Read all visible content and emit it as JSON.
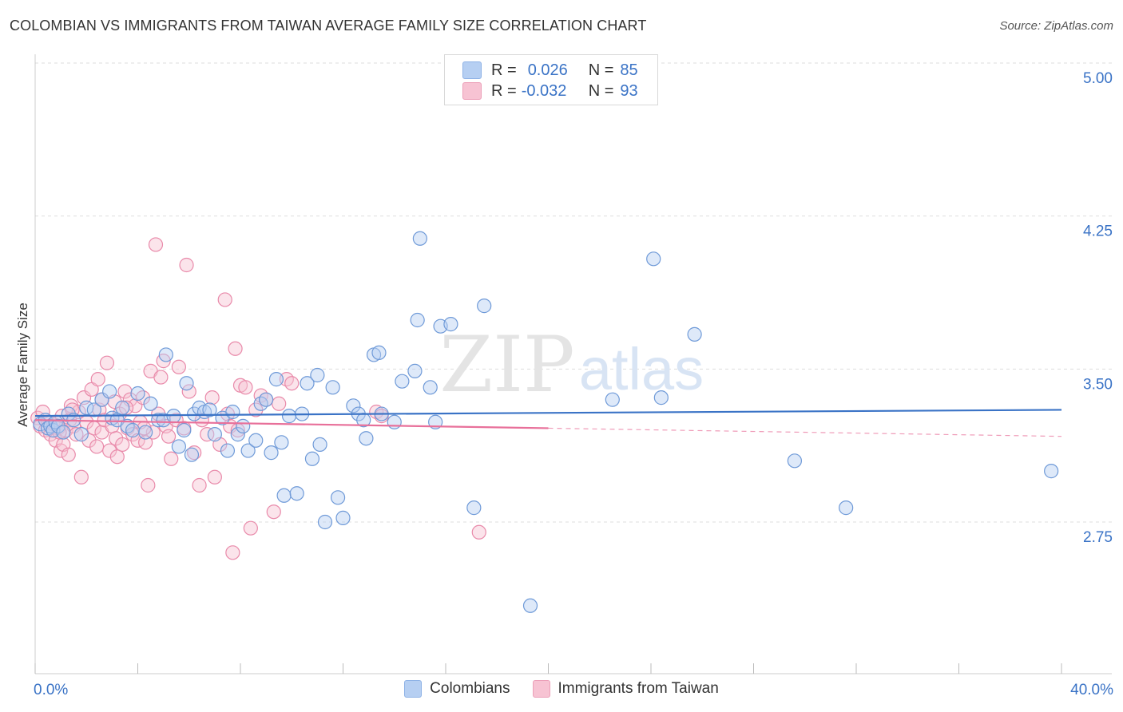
{
  "title": "COLOMBIAN VS IMMIGRANTS FROM TAIWAN AVERAGE FAMILY SIZE CORRELATION CHART",
  "source": "Source: ZipAtlas.com",
  "watermark": {
    "zip": "ZIP",
    "atlas": "atlas"
  },
  "legend": {
    "series1": {
      "r_label": "R =",
      "r_value": "0.026",
      "n_label": "N =",
      "n_value": "85"
    },
    "series2": {
      "r_label": "R =",
      "r_value": "-0.032",
      "n_label": "N =",
      "n_value": "93"
    }
  },
  "bottom_legend": {
    "series1": "Colombians",
    "series2": "Immigrants from Taiwan"
  },
  "colors": {
    "blue": "#3a73c6",
    "blue_fill": "#b6cff2",
    "pink": "#e8709a",
    "pink_fill": "#f7c3d3"
  },
  "chart_data": {
    "type": "scatter",
    "title": "COLOMBIAN VS IMMIGRANTS FROM TAIWAN AVERAGE FAMILY SIZE CORRELATION CHART",
    "xlabel": "",
    "ylabel": "Average Family Size",
    "xlim": [
      0,
      40
    ],
    "ylim": [
      2.0,
      5.1
    ],
    "x_tick_labels": [
      "0.0%",
      "40.0%"
    ],
    "y_ticks": [
      2.75,
      3.5,
      4.25,
      5.0
    ],
    "y_tick_labels": [
      "2.75",
      "3.50",
      "4.25",
      "5.00"
    ],
    "grid": true,
    "series": [
      {
        "name": "Colombians",
        "r": 0.026,
        "n": 85,
        "trend": {
          "x": [
            0,
            40
          ],
          "y": [
            3.27,
            3.3
          ]
        },
        "points": [
          [
            0.2,
            3.23
          ],
          [
            0.4,
            3.25
          ],
          [
            0.5,
            3.21
          ],
          [
            0.6,
            3.22
          ],
          [
            0.7,
            3.2
          ],
          [
            0.8,
            3.24
          ],
          [
            0.9,
            3.22
          ],
          [
            1.1,
            3.19
          ],
          [
            1.3,
            3.28
          ],
          [
            1.5,
            3.25
          ],
          [
            1.8,
            3.18
          ],
          [
            2.0,
            3.31
          ],
          [
            2.3,
            3.3
          ],
          [
            2.6,
            3.35
          ],
          [
            2.9,
            3.39
          ],
          [
            3.0,
            3.26
          ],
          [
            3.2,
            3.25
          ],
          [
            3.4,
            3.31
          ],
          [
            3.6,
            3.22
          ],
          [
            3.8,
            3.2
          ],
          [
            4.0,
            3.38
          ],
          [
            4.3,
            3.19
          ],
          [
            4.5,
            3.33
          ],
          [
            4.8,
            3.25
          ],
          [
            5.0,
            3.25
          ],
          [
            5.1,
            3.57
          ],
          [
            5.4,
            3.27
          ],
          [
            5.6,
            3.12
          ],
          [
            5.8,
            3.2
          ],
          [
            5.9,
            3.43
          ],
          [
            6.1,
            3.08
          ],
          [
            6.2,
            3.28
          ],
          [
            6.4,
            3.31
          ],
          [
            6.6,
            3.29
          ],
          [
            6.8,
            3.3
          ],
          [
            7.0,
            3.18
          ],
          [
            7.3,
            3.26
          ],
          [
            7.5,
            3.1
          ],
          [
            7.7,
            3.29
          ],
          [
            7.9,
            3.18
          ],
          [
            8.1,
            3.22
          ],
          [
            8.3,
            3.1
          ],
          [
            8.6,
            3.15
          ],
          [
            8.8,
            3.33
          ],
          [
            9.0,
            3.35
          ],
          [
            9.2,
            3.09
          ],
          [
            9.4,
            3.45
          ],
          [
            9.6,
            3.14
          ],
          [
            9.7,
            2.88
          ],
          [
            9.9,
            3.27
          ],
          [
            10.2,
            2.89
          ],
          [
            10.4,
            3.28
          ],
          [
            10.6,
            3.43
          ],
          [
            10.8,
            3.06
          ],
          [
            11.0,
            3.47
          ],
          [
            11.1,
            3.13
          ],
          [
            11.3,
            2.75
          ],
          [
            11.6,
            3.41
          ],
          [
            11.8,
            2.87
          ],
          [
            12.0,
            2.77
          ],
          [
            12.4,
            3.32
          ],
          [
            12.6,
            3.28
          ],
          [
            12.8,
            3.25
          ],
          [
            12.9,
            3.16
          ],
          [
            13.2,
            3.57
          ],
          [
            13.4,
            3.58
          ],
          [
            13.5,
            3.28
          ],
          [
            14.0,
            3.24
          ],
          [
            14.3,
            3.44
          ],
          [
            14.8,
            3.49
          ],
          [
            14.9,
            3.74
          ],
          [
            15.0,
            4.14
          ],
          [
            15.4,
            3.41
          ],
          [
            15.6,
            3.24
          ],
          [
            15.8,
            3.71
          ],
          [
            16.2,
            3.72
          ],
          [
            17.1,
            2.82
          ],
          [
            17.5,
            3.81
          ],
          [
            22.5,
            3.35
          ],
          [
            24.1,
            4.04
          ],
          [
            24.4,
            3.36
          ],
          [
            25.7,
            3.67
          ],
          [
            29.6,
            3.05
          ],
          [
            31.6,
            2.82
          ],
          [
            39.6,
            3.0
          ],
          [
            19.3,
            2.34
          ]
        ]
      },
      {
        "name": "Immigrants from Taiwan",
        "r": -0.032,
        "n": 93,
        "trend": {
          "x": [
            0,
            20
          ],
          "y": [
            3.25,
            3.21
          ]
        },
        "trend_dashed": {
          "x": [
            20,
            40
          ],
          "y": [
            3.21,
            3.17
          ]
        },
        "points": [
          [
            0.1,
            3.26
          ],
          [
            0.2,
            3.22
          ],
          [
            0.3,
            3.29
          ],
          [
            0.4,
            3.2
          ],
          [
            0.5,
            3.24
          ],
          [
            0.6,
            3.18
          ],
          [
            0.7,
            3.23
          ],
          [
            0.8,
            3.15
          ],
          [
            0.9,
            3.21
          ],
          [
            1.0,
            3.1
          ],
          [
            1.05,
            3.27
          ],
          [
            1.1,
            3.13
          ],
          [
            1.2,
            3.2
          ],
          [
            1.3,
            3.08
          ],
          [
            1.35,
            3.25
          ],
          [
            1.4,
            3.32
          ],
          [
            1.5,
            3.22
          ],
          [
            1.6,
            3.18
          ],
          [
            1.7,
            3.29
          ],
          [
            1.8,
            2.97
          ],
          [
            1.9,
            3.36
          ],
          [
            2.0,
            3.24
          ],
          [
            2.1,
            3.15
          ],
          [
            2.2,
            3.4
          ],
          [
            2.3,
            3.21
          ],
          [
            2.4,
            3.12
          ],
          [
            2.5,
            3.3
          ],
          [
            2.6,
            3.19
          ],
          [
            2.7,
            3.25
          ],
          [
            2.8,
            3.53
          ],
          [
            2.9,
            3.1
          ],
          [
            3.0,
            3.22
          ],
          [
            3.1,
            3.34
          ],
          [
            3.15,
            3.16
          ],
          [
            3.2,
            3.07
          ],
          [
            3.3,
            3.28
          ],
          [
            3.4,
            3.13
          ],
          [
            3.5,
            3.39
          ],
          [
            3.6,
            3.21
          ],
          [
            3.7,
            3.35
          ],
          [
            3.8,
            3.18
          ],
          [
            3.9,
            3.32
          ],
          [
            4.0,
            3.15
          ],
          [
            4.1,
            3.24
          ],
          [
            4.2,
            3.36
          ],
          [
            4.3,
            3.14
          ],
          [
            4.4,
            2.93
          ],
          [
            4.5,
            3.49
          ],
          [
            4.6,
            3.19
          ],
          [
            4.7,
            4.11
          ],
          [
            4.8,
            3.28
          ],
          [
            4.9,
            3.46
          ],
          [
            5.0,
            3.54
          ],
          [
            5.1,
            3.22
          ],
          [
            5.2,
            3.17
          ],
          [
            5.3,
            3.06
          ],
          [
            5.5,
            3.25
          ],
          [
            5.6,
            3.51
          ],
          [
            5.8,
            3.21
          ],
          [
            5.9,
            4.01
          ],
          [
            6.0,
            3.39
          ],
          [
            6.2,
            3.09
          ],
          [
            6.4,
            2.93
          ],
          [
            6.5,
            3.25
          ],
          [
            6.7,
            3.18
          ],
          [
            6.9,
            3.36
          ],
          [
            7.0,
            2.97
          ],
          [
            7.2,
            3.13
          ],
          [
            7.4,
            3.84
          ],
          [
            7.5,
            3.28
          ],
          [
            7.6,
            3.22
          ],
          [
            7.7,
            2.6
          ],
          [
            7.8,
            3.6
          ],
          [
            7.9,
            3.2
          ],
          [
            8.0,
            3.42
          ],
          [
            8.2,
            3.41
          ],
          [
            8.4,
            2.72
          ],
          [
            8.6,
            3.3
          ],
          [
            8.8,
            3.37
          ],
          [
            9.0,
            3.35
          ],
          [
            9.3,
            2.8
          ],
          [
            9.5,
            3.33
          ],
          [
            9.8,
            3.45
          ],
          [
            10.0,
            3.43
          ],
          [
            13.3,
            3.29
          ],
          [
            13.5,
            3.27
          ],
          [
            17.3,
            2.7
          ],
          [
            2.6,
            3.35
          ],
          [
            1.45,
            3.3
          ],
          [
            0.95,
            3.19
          ],
          [
            2.45,
            3.45
          ],
          [
            3.55,
            3.31
          ],
          [
            4.25,
            3.21
          ]
        ]
      }
    ]
  }
}
